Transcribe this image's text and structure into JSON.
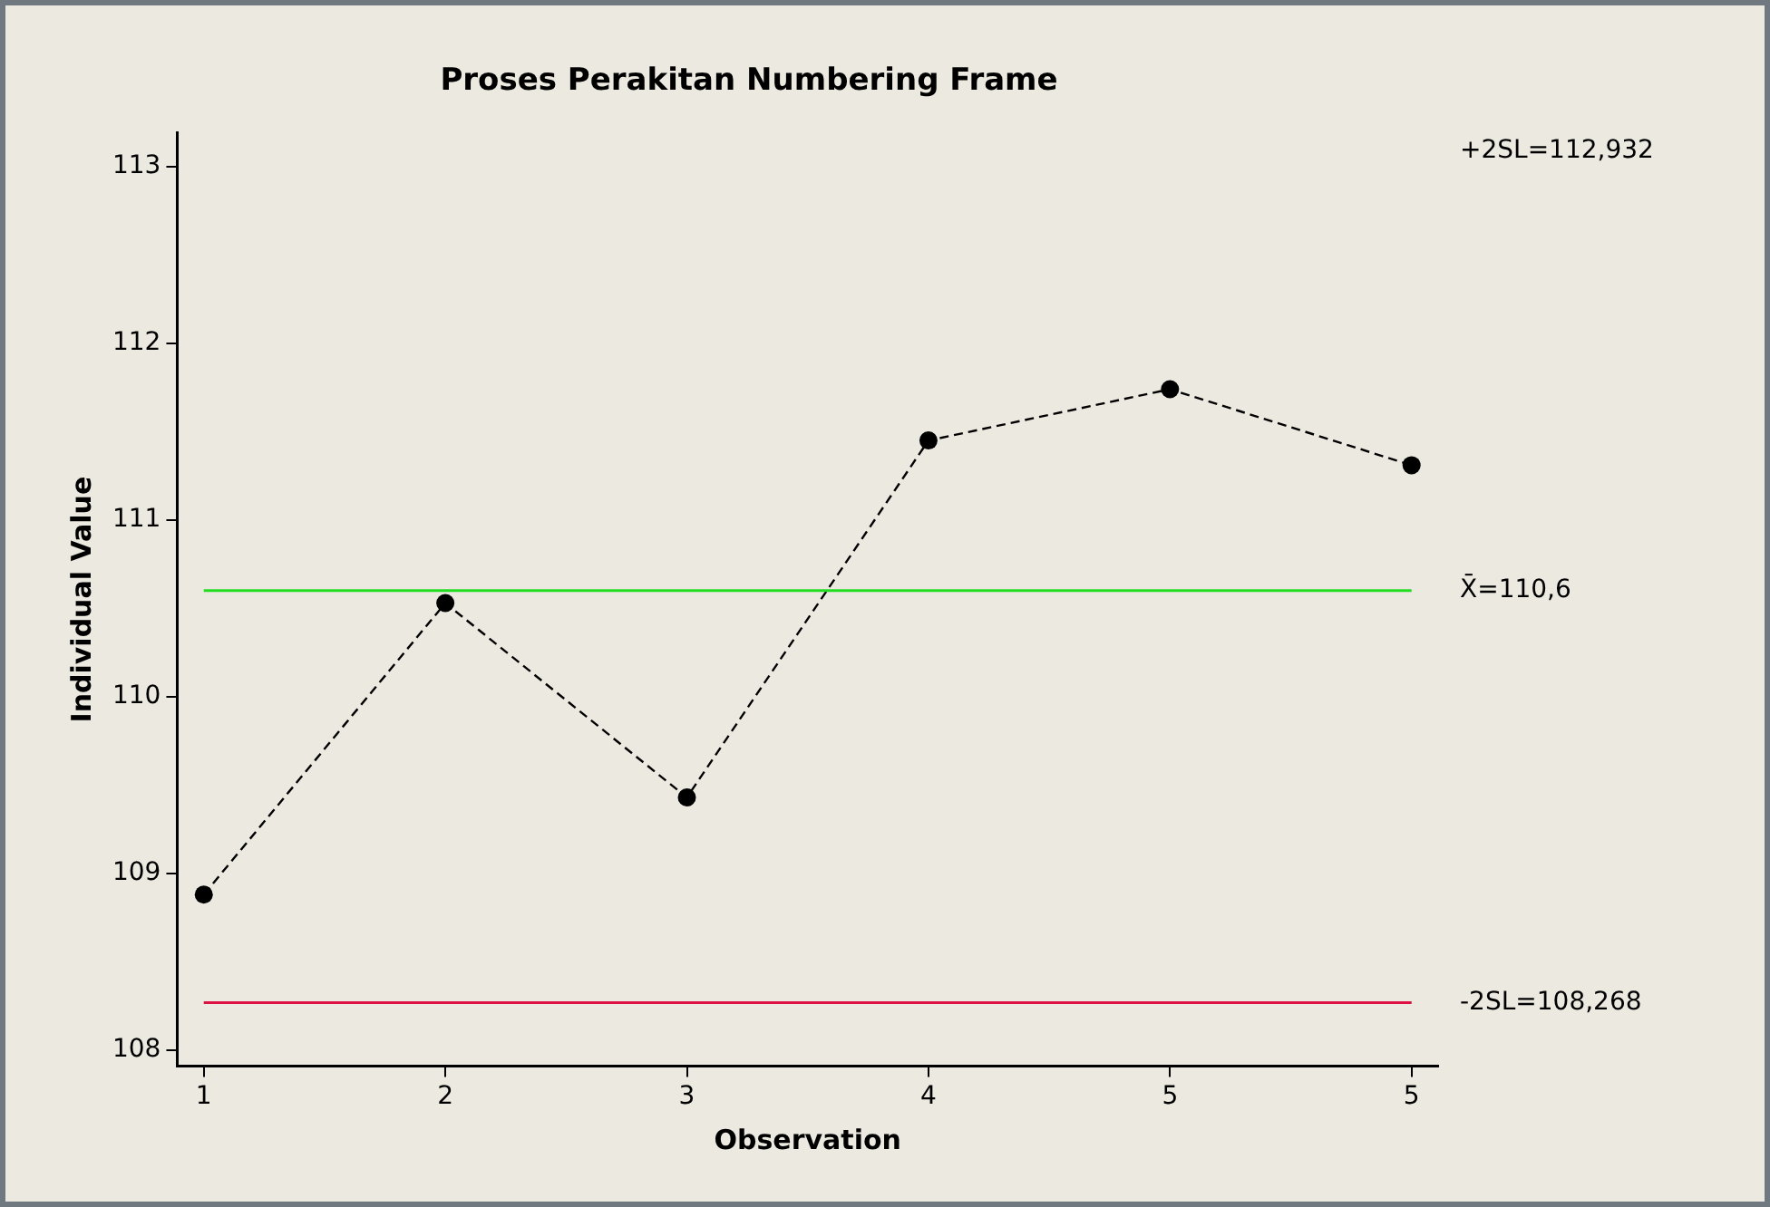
{
  "chart_data": {
    "type": "line",
    "title": "Proses Perakitan Numbering Frame",
    "xlabel": "Observation",
    "ylabel": "Individual Value",
    "categories": [
      "1",
      "2",
      "3",
      "4",
      "5",
      "5"
    ],
    "series": [
      {
        "color": "#000000",
        "values": [
          108.88,
          110.53,
          109.43,
          111.45,
          111.74,
          111.31
        ]
      }
    ],
    "ylim": [
      107.91,
      113.19
    ],
    "yticks": [
      108,
      109,
      110,
      111,
      112,
      113
    ],
    "ref_lines": [
      {
        "axis": "y",
        "value": 110.6,
        "label": "X̄=110,6",
        "color": "#22dd22"
      },
      {
        "axis": "y",
        "value": 108.268,
        "label": "-2SL=108,268",
        "color": "#dd1144"
      }
    ],
    "annotations": [
      "+2SL=112,932"
    ],
    "grid": false,
    "legend": false,
    "marker": "circle",
    "line_style": "dashed"
  }
}
